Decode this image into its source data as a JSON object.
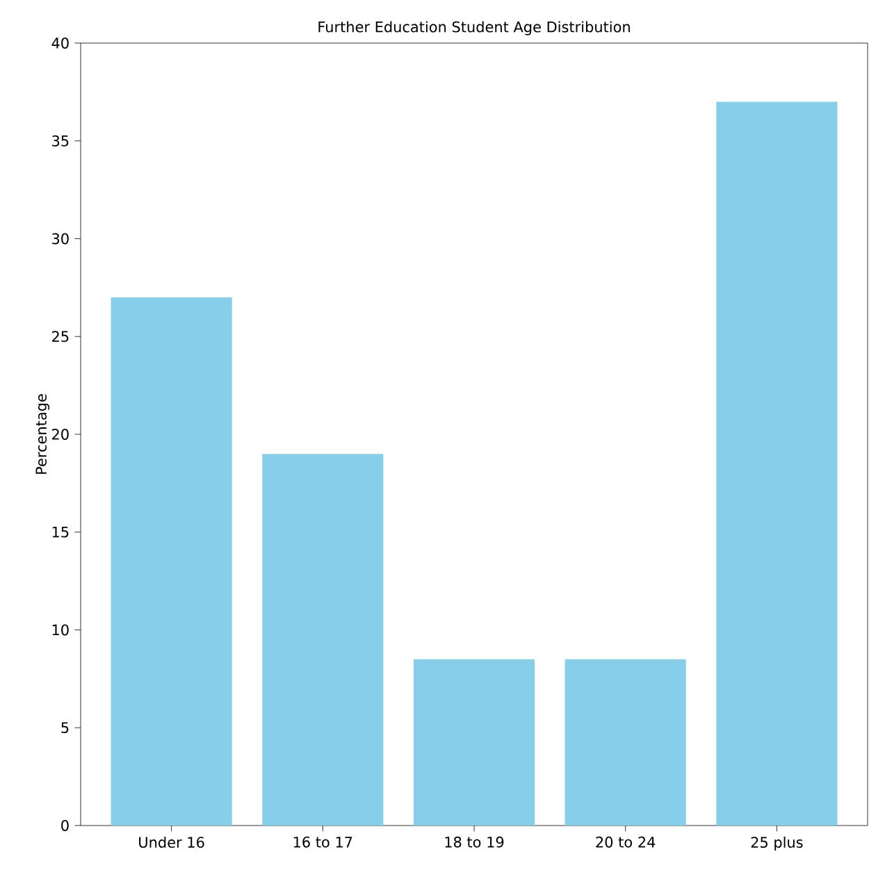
{
  "chart_data": {
    "type": "bar",
    "title": "Further Education Student Age Distribution",
    "ylabel": "Percentage",
    "categories": [
      "Under 16",
      "16 to 17",
      "18 to 19",
      "20 to 24",
      "25 plus"
    ],
    "values": [
      27,
      19,
      8.5,
      8.5,
      37
    ],
    "color": "#87ceeb",
    "ylim": [
      0,
      40
    ],
    "yticks": [
      0,
      5,
      10,
      15,
      20,
      25,
      30,
      35,
      40
    ]
  }
}
